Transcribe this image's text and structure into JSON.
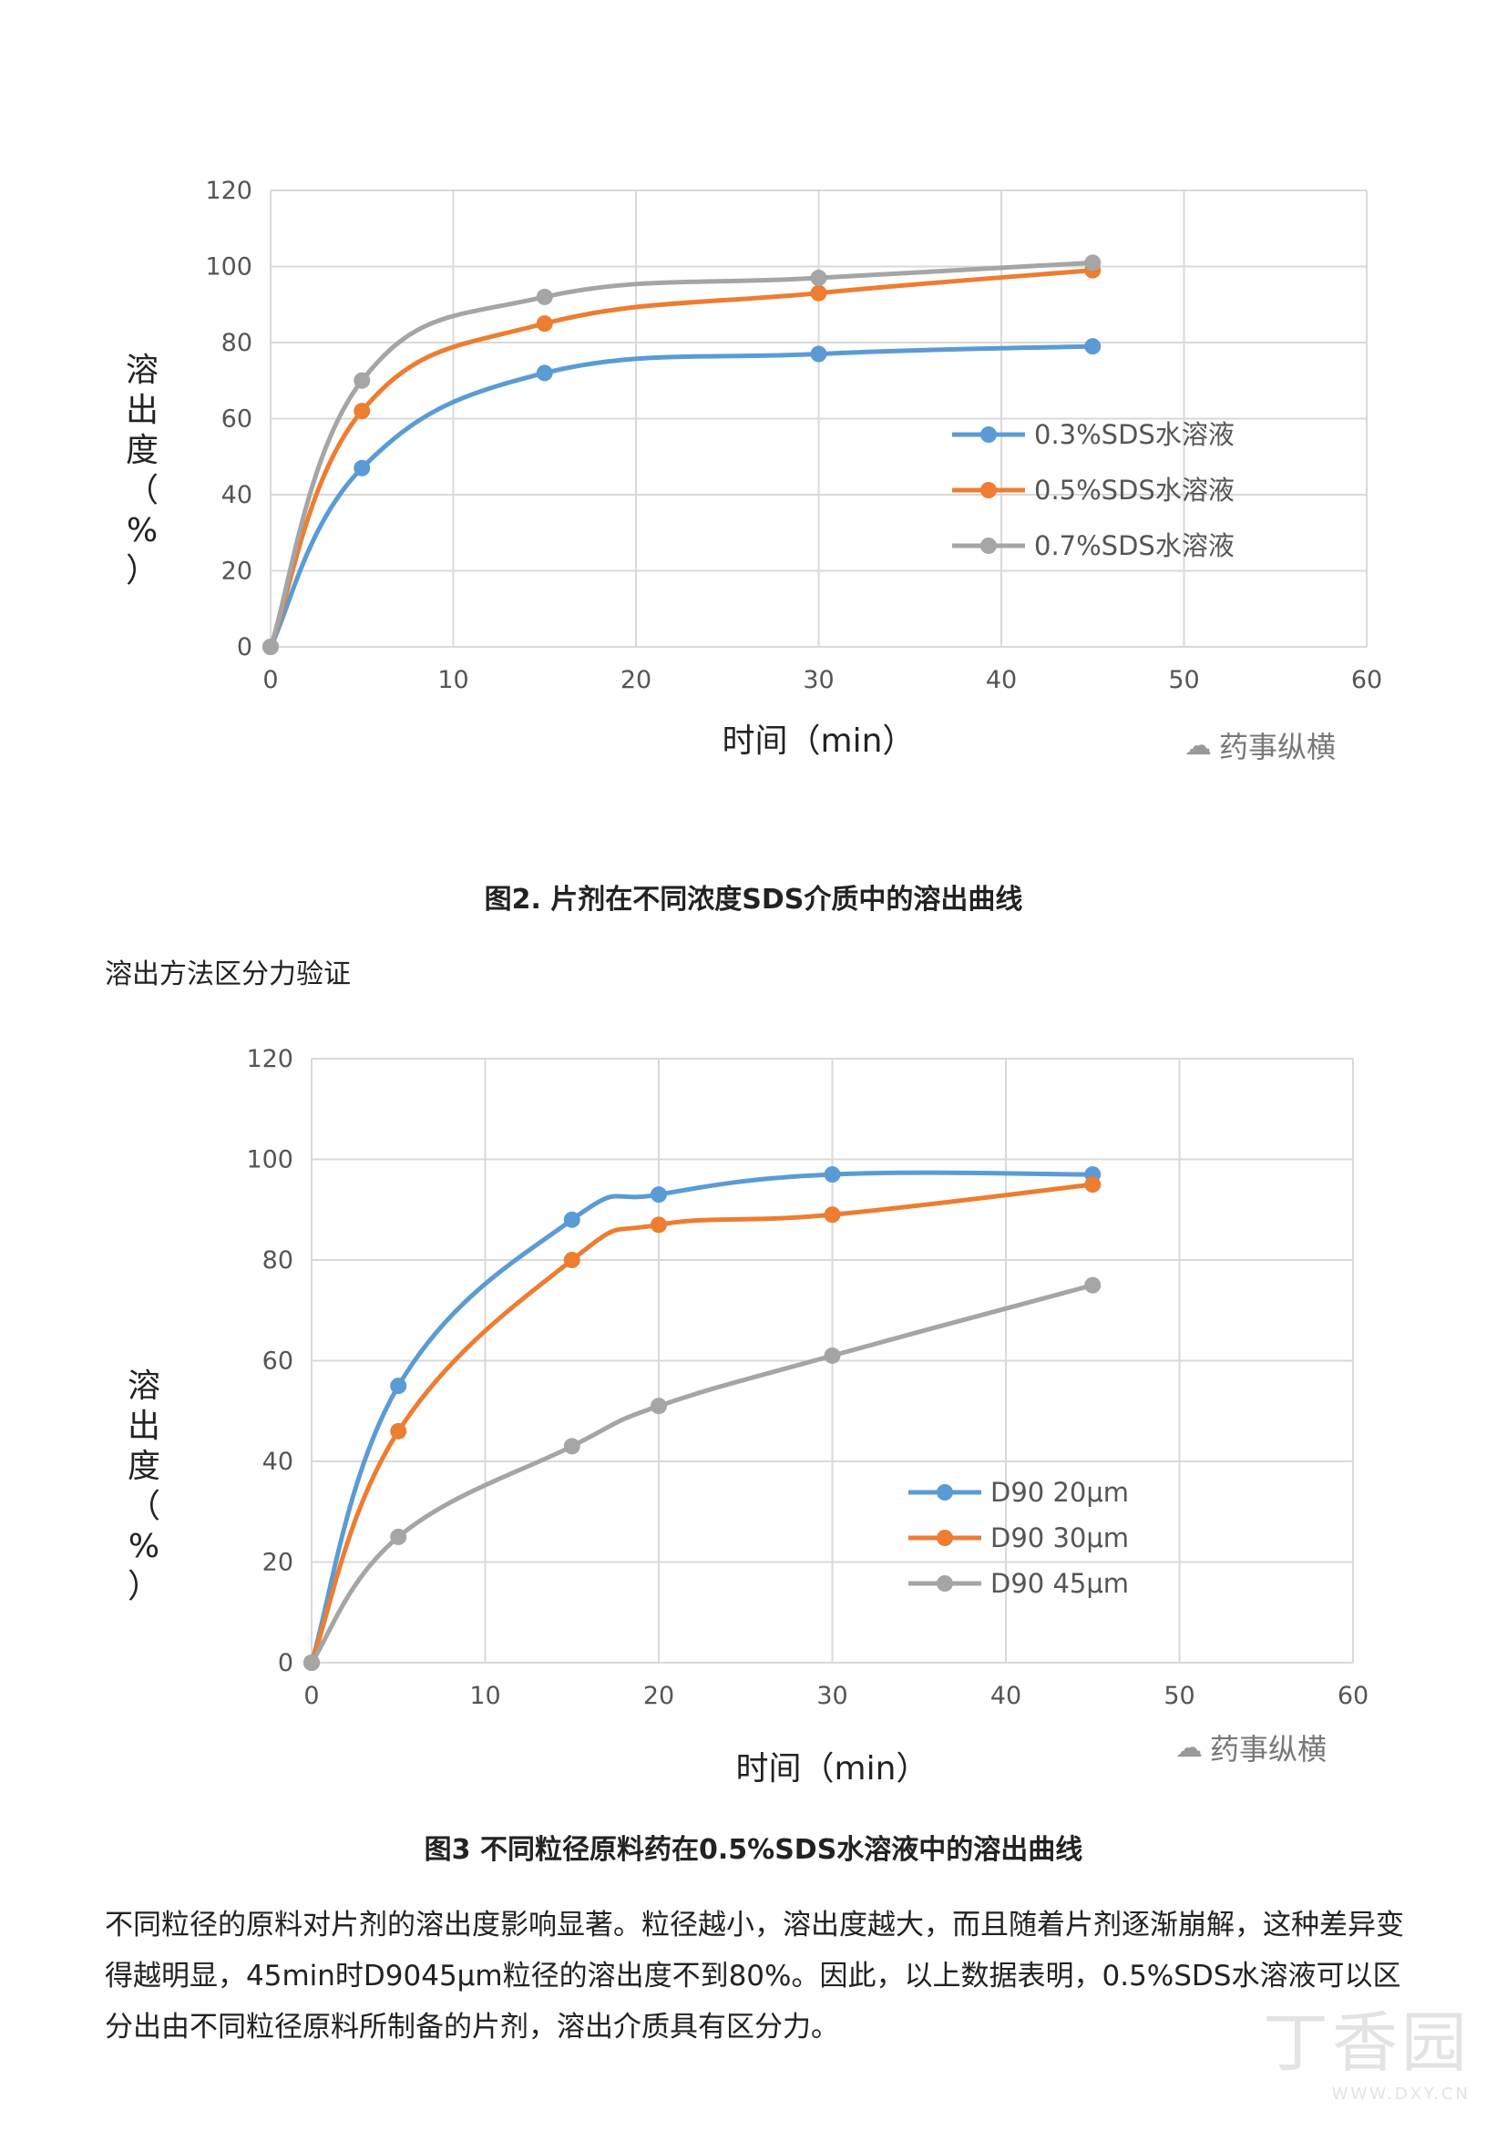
{
  "chart_data": [
    {
      "type": "line",
      "title": "",
      "xlabel": "时间（min）",
      "ylabel": "溶出度（%）",
      "xlim": [
        0,
        60
      ],
      "ylim": [
        0,
        120
      ],
      "x_ticks": [
        0,
        10,
        20,
        30,
        40,
        50,
        60
      ],
      "y_ticks": [
        0,
        20,
        40,
        60,
        80,
        100,
        120
      ],
      "grid": true,
      "legend_position": "right-middle",
      "x": [
        0,
        5,
        15,
        30,
        45
      ],
      "series": [
        {
          "name": "0.3%SDS水溶液",
          "color": "#5b9bd5",
          "values": [
            0,
            47,
            72,
            77,
            79
          ]
        },
        {
          "name": "0.5%SDS水溶液",
          "color": "#ed7d31",
          "values": [
            0,
            62,
            85,
            93,
            99
          ]
        },
        {
          "name": "0.7%SDS水溶液",
          "color": "#a5a5a5",
          "values": [
            0,
            70,
            92,
            97,
            101
          ]
        }
      ]
    },
    {
      "type": "line",
      "title": "",
      "xlabel": "时间（min）",
      "ylabel": "溶出度（%）",
      "xlim": [
        0,
        60
      ],
      "ylim": [
        0,
        120
      ],
      "x_ticks": [
        0,
        10,
        20,
        30,
        40,
        50,
        60
      ],
      "y_ticks": [
        0,
        20,
        40,
        60,
        80,
        100,
        120
      ],
      "grid": true,
      "legend_position": "right-bottom",
      "x": [
        0,
        5,
        15,
        20,
        30,
        45
      ],
      "series": [
        {
          "name": "D90 20μm",
          "color": "#5b9bd5",
          "values": [
            0,
            55,
            88,
            93,
            97,
            97
          ]
        },
        {
          "name": "D90 30μm",
          "color": "#ed7d31",
          "values": [
            0,
            46,
            80,
            87,
            89,
            95
          ]
        },
        {
          "name": "D90 45μm",
          "color": "#a5a5a5",
          "values": [
            0,
            25,
            43,
            51,
            61,
            75
          ]
        }
      ]
    }
  ],
  "watermark": "药事纵横",
  "caption1": "图2. 片剂在不同浓度SDS介质中的溶出曲线",
  "section_heading": "溶出方法区分力验证",
  "caption2": "图3 不同粒径原料药在0.5%SDS水溶液中的溶出曲线",
  "body_text": "不同粒径的原料对片剂的溶出度影响显著。粒径越小，溶出度越大，而且随着片剂逐渐崩解，这种差异变得越明显，45min时D9045μm粒径的溶出度不到80%。因此，以上数据表明，0.5%SDS水溶液可以区分出由不同粒径原料所制备的片剂，溶出介质具有区分力。",
  "corner_watermark": {
    "main": "丁香园",
    "sub": "WWW.DXY.CN"
  }
}
